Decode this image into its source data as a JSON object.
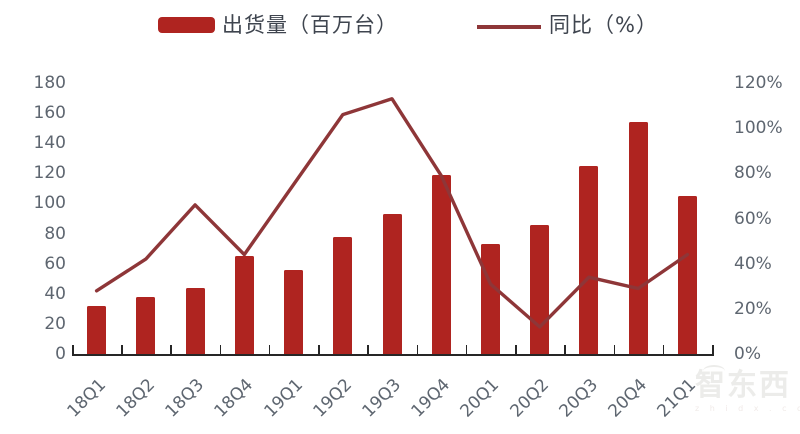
{
  "legend": {
    "bar_label": "出货量（百万台）",
    "line_label": "同比（%）"
  },
  "watermark": {
    "brand": "智东西",
    "domain": "z h i d x . c o m"
  },
  "colors": {
    "bar": "#AF2420",
    "line": "#8E3638",
    "axis_text": "#5E6670",
    "legend_text": "#3F454F",
    "axis_line": "#262626",
    "watermark": "#ECECEA"
  },
  "chart_data": {
    "type": "combo-bar-line",
    "title": "",
    "categories": [
      "18Q1",
      "18Q2",
      "18Q3",
      "18Q4",
      "19Q1",
      "19Q2",
      "19Q3",
      "19Q4",
      "20Q1",
      "20Q2",
      "20Q3",
      "20Q4",
      "21Q1"
    ],
    "series": [
      {
        "name": "出货量（百万台）",
        "type": "bar",
        "axis": "left",
        "values": [
          32,
          38,
          44,
          65,
          56,
          78,
          93,
          119,
          73,
          86,
          125,
          154,
          105
        ]
      },
      {
        "name": "同比（%）",
        "type": "line",
        "axis": "right",
        "values": [
          28,
          42,
          66,
          44,
          75,
          106,
          113,
          79,
          31,
          12,
          34,
          29,
          44
        ]
      }
    ],
    "left_axis": {
      "min": 0,
      "max": 180,
      "step": 20,
      "tick_labels": [
        "180",
        "160",
        "140",
        "120",
        "100",
        "80",
        "60",
        "40",
        "20",
        "0"
      ]
    },
    "right_axis": {
      "min": 0,
      "max": 120,
      "step": 20,
      "tick_labels": [
        "120%",
        "100%",
        "80%",
        "60%",
        "40%",
        "20%",
        "0%"
      ]
    },
    "grid": false,
    "legend_position": "top"
  }
}
